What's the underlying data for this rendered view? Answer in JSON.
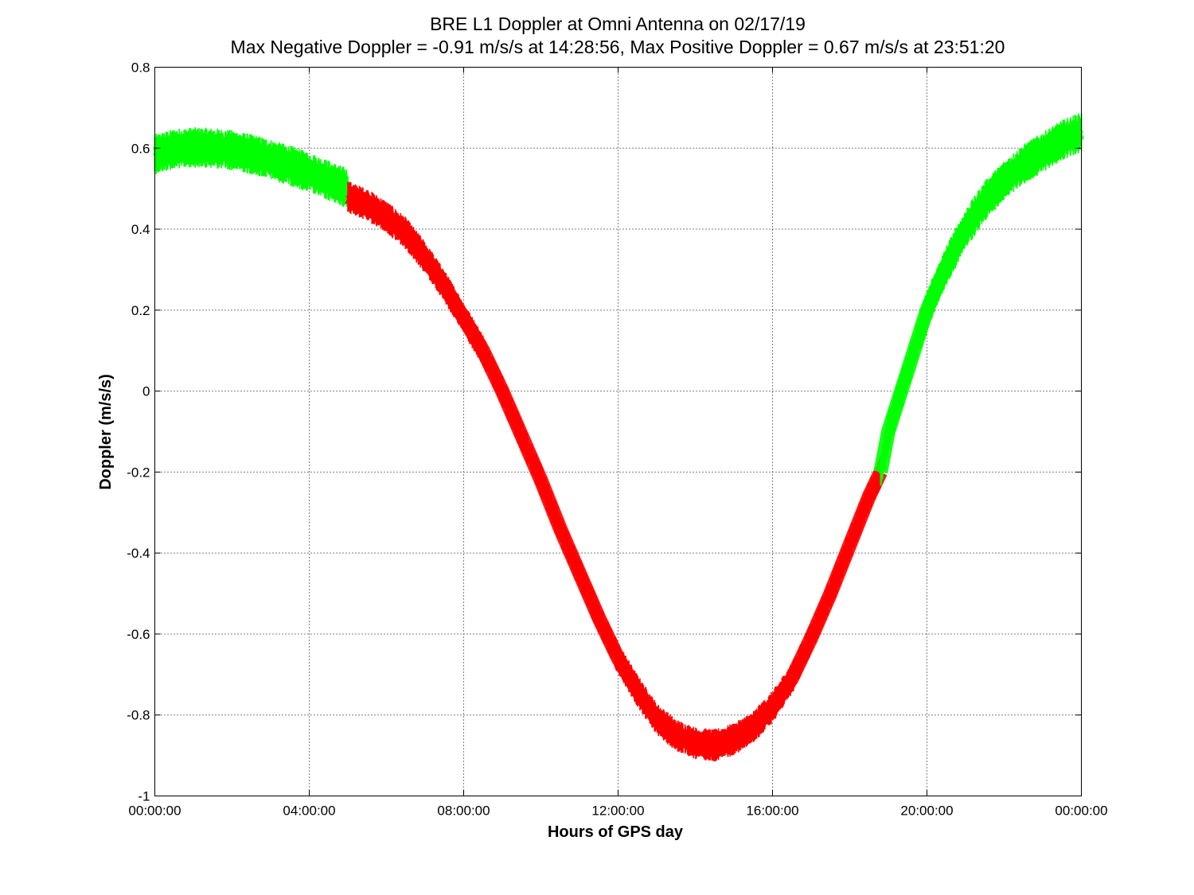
{
  "chart_data": {
    "type": "scatter",
    "title": "BRE  L1 Doppler at Omni Antenna on 02/17/19",
    "subtitle": "Max Negative Doppler = -0.91 m/s/s  at 14:28:56,   Max Positive Doppler = 0.67 m/s/s  at 23:51:20",
    "xlabel": "Hours of GPS day",
    "ylabel": "Doppler (m/s/s)",
    "xlim": [
      0,
      24
    ],
    "ylim": [
      -1,
      0.8
    ],
    "x_ticks": [
      {
        "value": 0,
        "label": "00:00:00"
      },
      {
        "value": 4,
        "label": "04:00:00"
      },
      {
        "value": 8,
        "label": "08:00:00"
      },
      {
        "value": 12,
        "label": "12:00:00"
      },
      {
        "value": 16,
        "label": "16:00:00"
      },
      {
        "value": 20,
        "label": "20:00:00"
      },
      {
        "value": 24,
        "label": "00:00:00"
      }
    ],
    "y_ticks": [
      {
        "value": 0.8,
        "label": "0.8"
      },
      {
        "value": 0.6,
        "label": "0.6"
      },
      {
        "value": 0.4,
        "label": "0.4"
      },
      {
        "value": 0.2,
        "label": "0.2"
      },
      {
        "value": 0,
        "label": "0"
      },
      {
        "value": -0.2,
        "label": "-0.2"
      },
      {
        "value": -0.4,
        "label": "-0.4"
      },
      {
        "value": -0.6,
        "label": "-0.6"
      },
      {
        "value": -0.8,
        "label": "-0.8"
      },
      {
        "value": -1,
        "label": "-1"
      }
    ],
    "grid": true,
    "series": [
      {
        "color": "#00ff00",
        "band": 0.05,
        "x": [
          0,
          0.5,
          1,
          1.5,
          2,
          2.5,
          3,
          3.5,
          4,
          4.5,
          5
        ],
        "y": [
          0.585,
          0.598,
          0.602,
          0.6,
          0.595,
          0.585,
          0.572,
          0.557,
          0.54,
          0.52,
          0.5
        ]
      },
      {
        "color": "#ff0000",
        "band": 0.04,
        "x": [
          5,
          5.5,
          6,
          6.5,
          7,
          7.5,
          8,
          8.5,
          9,
          9.5,
          10,
          10.5,
          11,
          11.5,
          12,
          12.5,
          13,
          13.5,
          14,
          14.5,
          15,
          15.5,
          16,
          16.5,
          17,
          17.5,
          18,
          18.5,
          18.8
        ],
        "y": [
          0.48,
          0.46,
          0.43,
          0.39,
          0.33,
          0.26,
          0.18,
          0.1,
          0.0,
          -0.11,
          -0.22,
          -0.34,
          -0.45,
          -0.56,
          -0.66,
          -0.74,
          -0.81,
          -0.85,
          -0.87,
          -0.875,
          -0.86,
          -0.83,
          -0.78,
          -0.71,
          -0.61,
          -0.5,
          -0.38,
          -0.26,
          -0.2
        ]
      },
      {
        "color": "#00ff00",
        "band": 0.05,
        "x": [
          18.8,
          19,
          19.5,
          20,
          20.5,
          21,
          21.5,
          22,
          22.5,
          23,
          23.5,
          24
        ],
        "y": [
          -0.2,
          -0.1,
          0.05,
          0.2,
          0.31,
          0.4,
          0.47,
          0.52,
          0.56,
          0.59,
          0.62,
          0.64
        ]
      }
    ]
  }
}
